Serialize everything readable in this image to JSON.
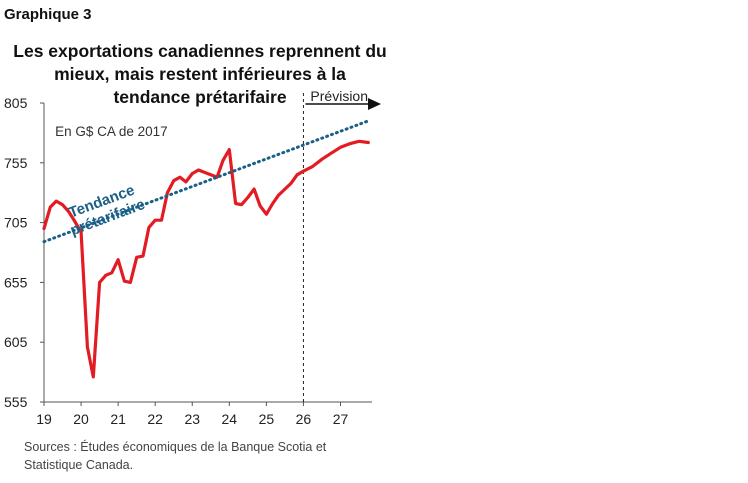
{
  "figure_label": "Graphique 3",
  "title_lines": [
    "Les exportations canadiennes reprennent du",
    "mieux, mais restent inférieures à la",
    "tendance prétarifaire"
  ],
  "sources_lines": [
    "Sources : Études économiques de la Banque Scotia et",
    "Statistique Canada."
  ],
  "chart_data": {
    "type": "line",
    "unit_label": "En G$ CA de 2017",
    "x_ticks": [
      "19",
      "20",
      "21",
      "22",
      "23",
      "24",
      "25",
      "26",
      "27"
    ],
    "y_ticks": [
      555,
      605,
      655,
      705,
      755,
      805
    ],
    "xlim": [
      19.0,
      27.85
    ],
    "ylim": [
      555,
      805
    ],
    "forecast_label": "Prévision",
    "forecast_start": 26.0,
    "trend_label": [
      "Tendance",
      "prétarifaire"
    ],
    "series": [
      {
        "name": "",
        "color": "#e31b23",
        "x": [
          19.0,
          19.17,
          19.33,
          19.5,
          19.67,
          19.83,
          20.0,
          20.17,
          20.33,
          20.5,
          20.67,
          20.83,
          21.0,
          21.17,
          21.33,
          21.5,
          21.67,
          21.83,
          22.0,
          22.17,
          22.33,
          22.5,
          22.67,
          22.83,
          23.0,
          23.17,
          23.33,
          23.5,
          23.67,
          23.83,
          24.0,
          24.17,
          24.33,
          24.5,
          24.67,
          24.83,
          25.0,
          25.17,
          25.33,
          25.5,
          25.67,
          25.83,
          26.0,
          26.25,
          26.5,
          26.75,
          27.0,
          27.25,
          27.5,
          27.75
        ],
        "values": [
          700,
          718,
          723,
          720,
          714,
          706,
          697,
          601,
          576,
          655,
          661,
          663,
          674,
          656,
          655,
          676,
          677,
          701,
          707,
          707,
          730,
          740,
          743,
          739,
          746,
          749,
          747,
          745,
          743,
          757,
          766,
          721,
          720,
          726,
          733,
          719,
          712,
          721,
          728,
          733,
          738,
          745,
          748,
          752,
          758,
          763,
          768,
          771,
          773,
          772
        ]
      },
      {
        "name": "Tendance prétarifaire",
        "color": "#1a5f86",
        "x": [
          19.0,
          27.75
        ],
        "values": [
          689,
          790
        ]
      }
    ],
    "grid": false
  }
}
